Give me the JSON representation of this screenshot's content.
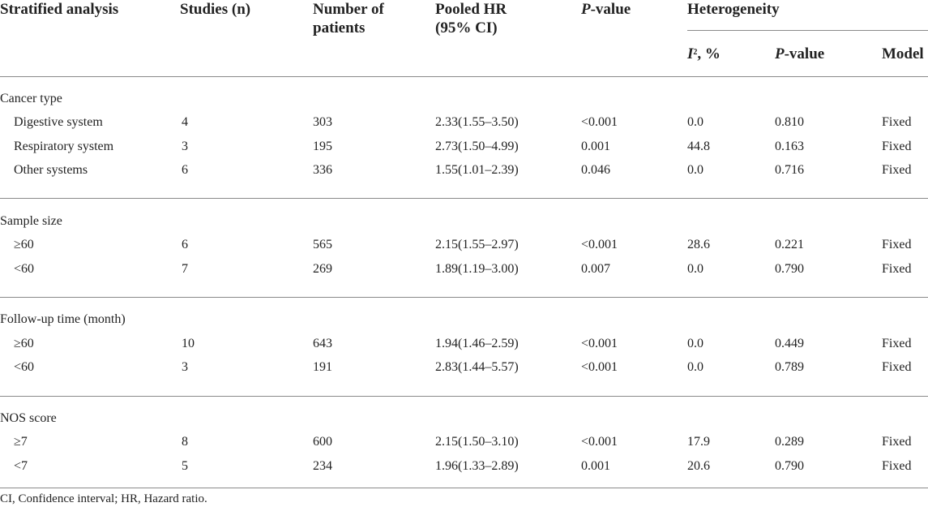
{
  "headers": {
    "stratified": "Stratified analysis",
    "studies": "Studies (n)",
    "patients_l1": "Number of",
    "patients_l2": "patients",
    "hr_l1": "Pooled HR",
    "hr_l2": "(95% CI)",
    "pvalue_i": "P",
    "pvalue_rest": "-value",
    "heterogeneity": "Heterogeneity",
    "i2_i": "I",
    "i2_sup": "2",
    "i2_rest": ", %",
    "het_p_i": "P",
    "het_p_rest": "-value",
    "model": "Model"
  },
  "groups": [
    {
      "title": "Cancer type",
      "rows": [
        {
          "label": "Digestive system",
          "studies": "4",
          "patients": "303",
          "hr": "2.33(1.55–3.50)",
          "p": "<0.001",
          "i2": "0.0",
          "het_p": "0.810",
          "model": "Fixed"
        },
        {
          "label": "Respiratory system",
          "studies": "3",
          "patients": "195",
          "hr": "2.73(1.50–4.99)",
          "p": "0.001",
          "i2": "44.8",
          "het_p": "0.163",
          "model": "Fixed"
        },
        {
          "label": "Other systems",
          "studies": "6",
          "patients": "336",
          "hr": "1.55(1.01–2.39)",
          "p": "0.046",
          "i2": "0.0",
          "het_p": "0.716",
          "model": "Fixed"
        }
      ]
    },
    {
      "title": "Sample size",
      "rows": [
        {
          "label": "≥60",
          "studies": "6",
          "patients": "565",
          "hr": "2.15(1.55–2.97)",
          "p": "<0.001",
          "i2": "28.6",
          "het_p": "0.221",
          "model": "Fixed"
        },
        {
          "label": "<60",
          "studies": "7",
          "patients": "269",
          "hr": "1.89(1.19–3.00)",
          "p": "0.007",
          "i2": "0.0",
          "het_p": "0.790",
          "model": "Fixed"
        }
      ]
    },
    {
      "title": "Follow-up time (month)",
      "rows": [
        {
          "label": "≥60",
          "studies": "10",
          "patients": "643",
          "hr": "1.94(1.46–2.59)",
          "p": "<0.001",
          "i2": "0.0",
          "het_p": "0.449",
          "model": "Fixed"
        },
        {
          "label": "<60",
          "studies": "3",
          "patients": "191",
          "hr": "2.83(1.44–5.57)",
          "p": "<0.001",
          "i2": "0.0",
          "het_p": "0.789",
          "model": "Fixed"
        }
      ]
    },
    {
      "title": "NOS score",
      "rows": [
        {
          "label": "≥7",
          "studies": "8",
          "patients": "600",
          "hr": "2.15(1.50–3.10)",
          "p": "<0.001",
          "i2": "17.9",
          "het_p": "0.289",
          "model": "Fixed"
        },
        {
          "label": "<7",
          "studies": "5",
          "patients": "234",
          "hr": "1.96(1.33–2.89)",
          "p": "0.001",
          "i2": "20.6",
          "het_p": "0.790",
          "model": "Fixed"
        }
      ]
    }
  ],
  "footnote": "CI, Confidence interval; HR, Hazard ratio."
}
